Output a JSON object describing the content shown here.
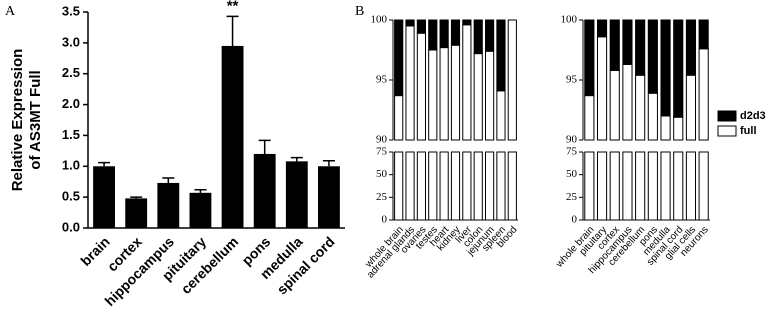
{
  "chart_data": [
    {
      "type": "bar",
      "panel": "A",
      "ylabel": [
        "Relative Expression",
        "of AS3MT Full"
      ],
      "categories": [
        "brain",
        "cortex",
        "hippocampus",
        "pituitary",
        "cerebellum",
        "pons",
        "medulla",
        "spinal cord"
      ],
      "values": [
        1.0,
        0.48,
        0.73,
        0.57,
        2.95,
        1.2,
        1.08,
        1.0
      ],
      "errors": [
        0.06,
        0.02,
        0.08,
        0.05,
        0.48,
        0.22,
        0.06,
        0.09
      ],
      "color": "#000000",
      "annotation": "**",
      "ylim": [
        0,
        3.5
      ],
      "yticks": [
        {
          "value": 0,
          "label": "0.0"
        },
        0.5,
        {
          "value": 1,
          "label": "1.0"
        },
        1.5,
        {
          "value": 2,
          "label": "2.0"
        },
        2.5,
        {
          "value": 3,
          "label": "3.0"
        },
        3.5
      ]
    },
    {
      "type": "stacked_bar",
      "panel": "B",
      "categories": [
        "whole brain",
        "adrenal glands",
        "ovaries",
        "testes",
        "heart",
        "kidney",
        "liver",
        "colon",
        "jejunum",
        "spleen",
        "blood"
      ],
      "series": [
        {
          "color": "#ffffff",
          "values": [
            93.7,
            99.5,
            98.9,
            97.5,
            97.7,
            97.9,
            99.6,
            97.2,
            97.4,
            94.1,
            100
          ]
        },
        {
          "color": "#000000",
          "values": [
            6.3,
            0.5,
            1.1,
            2.5,
            2.3,
            2.1,
            0.4,
            2.8,
            2.6,
            5.9,
            0
          ]
        }
      ],
      "ylim": [
        0,
        100
      ],
      "ybreak": [
        75,
        90
      ],
      "yticks": [
        0,
        25,
        50,
        75,
        90,
        95,
        100
      ]
    },
    {
      "type": "stacked_bar",
      "categories": [
        "whole brain",
        "pituitary",
        "cortex",
        "hippocampus",
        "cerebellum",
        "pons",
        "medulla",
        "spinal cord",
        "glial cells",
        "neurons"
      ],
      "series": [
        {
          "name": "full",
          "color": "#ffffff",
          "values": [
            93.7,
            98.6,
            95.8,
            96.3,
            95.4,
            93.9,
            92.0,
            91.9,
            95.4,
            97.6
          ]
        },
        {
          "name": "d2d3",
          "color": "#000000",
          "values": [
            6.3,
            1.4,
            4.2,
            3.7,
            4.6,
            6.1,
            8.0,
            8.1,
            4.6,
            2.4
          ]
        }
      ],
      "ylim": [
        0,
        100
      ],
      "ybreak": [
        75,
        90
      ],
      "yticks": [
        0,
        25,
        50,
        75,
        90,
        95,
        100
      ],
      "legend": "right"
    }
  ]
}
